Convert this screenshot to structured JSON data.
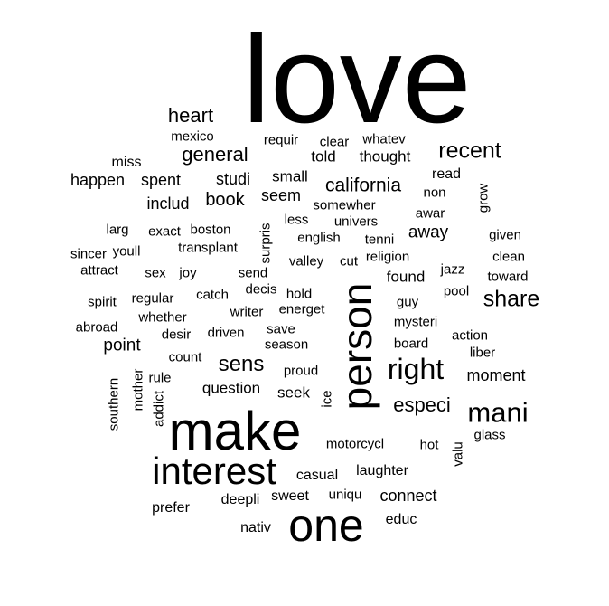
{
  "words": [
    {
      "text": "love",
      "size": 138,
      "rotate": 0
    },
    {
      "text": "make",
      "size": 60,
      "rotate": 0
    },
    {
      "text": "person",
      "size": 46,
      "rotate": -90
    },
    {
      "text": "interest",
      "size": 42,
      "rotate": 0
    },
    {
      "text": "one",
      "size": 50,
      "rotate": 0
    },
    {
      "text": "right",
      "size": 32,
      "rotate": 0
    },
    {
      "text": "mani",
      "size": 31,
      "rotate": 0
    },
    {
      "text": "share",
      "size": 25,
      "rotate": 0
    },
    {
      "text": "recent",
      "size": 25,
      "rotate": 0
    },
    {
      "text": "sens",
      "size": 24,
      "rotate": 0
    },
    {
      "text": "heart",
      "size": 22,
      "rotate": 0
    },
    {
      "text": "general",
      "size": 22,
      "rotate": 0
    },
    {
      "text": "california",
      "size": 21,
      "rotate": 0
    },
    {
      "text": "especi",
      "size": 22,
      "rotate": 0
    },
    {
      "text": "book",
      "size": 20,
      "rotate": 0
    },
    {
      "text": "point",
      "size": 19,
      "rotate": 0
    },
    {
      "text": "away",
      "size": 19,
      "rotate": 0
    },
    {
      "text": "studi",
      "size": 18,
      "rotate": 0
    },
    {
      "text": "includ",
      "size": 18,
      "rotate": 0
    },
    {
      "text": "happen",
      "size": 18,
      "rotate": 0
    },
    {
      "text": "spent",
      "size": 18,
      "rotate": 0
    },
    {
      "text": "connect",
      "size": 18,
      "rotate": 0
    },
    {
      "text": "moment",
      "size": 18,
      "rotate": 0
    },
    {
      "text": "seem",
      "size": 18,
      "rotate": 0
    },
    {
      "text": "found",
      "size": 17,
      "rotate": 0
    },
    {
      "text": "small",
      "size": 17,
      "rotate": 0
    },
    {
      "text": "thought",
      "size": 17,
      "rotate": 0
    },
    {
      "text": "told",
      "size": 17,
      "rotate": 0
    },
    {
      "text": "question",
      "size": 17,
      "rotate": 0
    },
    {
      "text": "seek",
      "size": 17,
      "rotate": 0
    },
    {
      "text": "motorcycl",
      "size": 15,
      "rotate": 0
    },
    {
      "text": "mysteri",
      "size": 15,
      "rotate": 0
    },
    {
      "text": "miss",
      "size": 16,
      "rotate": 0
    },
    {
      "text": "read",
      "size": 16,
      "rotate": 0
    },
    {
      "text": "prefer",
      "size": 16,
      "rotate": 0
    },
    {
      "text": "deepli",
      "size": 16,
      "rotate": 0
    },
    {
      "text": "sweet",
      "size": 16,
      "rotate": 0
    },
    {
      "text": "nativ",
      "size": 16,
      "rotate": 0
    },
    {
      "text": "educ",
      "size": 16,
      "rotate": 0
    },
    {
      "text": "casual",
      "size": 16,
      "rotate": 0
    },
    {
      "text": "laughter",
      "size": 16,
      "rotate": 0
    },
    {
      "text": "uniqu",
      "size": 15,
      "rotate": 0
    },
    {
      "text": "hot",
      "size": 15,
      "rotate": 0
    },
    {
      "text": "glass",
      "size": 15,
      "rotate": 0
    },
    {
      "text": "valu",
      "size": 15,
      "rotate": -90
    },
    {
      "text": "proud",
      "size": 15,
      "rotate": 0
    },
    {
      "text": "save",
      "size": 15,
      "rotate": 0
    },
    {
      "text": "season",
      "size": 15,
      "rotate": 0
    },
    {
      "text": "count",
      "size": 15,
      "rotate": 0
    },
    {
      "text": "rule",
      "size": 15,
      "rotate": 0
    },
    {
      "text": "whether",
      "size": 15,
      "rotate": 0
    },
    {
      "text": "regular",
      "size": 15,
      "rotate": 0
    },
    {
      "text": "spirit",
      "size": 15,
      "rotate": 0
    },
    {
      "text": "abroad",
      "size": 15,
      "rotate": 0
    },
    {
      "text": "desir",
      "size": 15,
      "rotate": 0
    },
    {
      "text": "driven",
      "size": 15,
      "rotate": 0
    },
    {
      "text": "writer",
      "size": 15,
      "rotate": 0
    },
    {
      "text": "energet",
      "size": 15,
      "rotate": 0
    },
    {
      "text": "hold",
      "size": 15,
      "rotate": 0
    },
    {
      "text": "decis",
      "size": 15,
      "rotate": 0
    },
    {
      "text": "catch",
      "size": 15,
      "rotate": 0
    },
    {
      "text": "send",
      "size": 15,
      "rotate": 0
    },
    {
      "text": "joy",
      "size": 15,
      "rotate": 0
    },
    {
      "text": "sex",
      "size": 15,
      "rotate": 0
    },
    {
      "text": "attract",
      "size": 15,
      "rotate": 0
    },
    {
      "text": "sincer",
      "size": 15,
      "rotate": 0
    },
    {
      "text": "youll",
      "size": 15,
      "rotate": 0
    },
    {
      "text": "transplant",
      "size": 15,
      "rotate": 0
    },
    {
      "text": "larg",
      "size": 15,
      "rotate": 0
    },
    {
      "text": "exact",
      "size": 15,
      "rotate": 0
    },
    {
      "text": "boston",
      "size": 15,
      "rotate": 0
    },
    {
      "text": "less",
      "size": 15,
      "rotate": 0
    },
    {
      "text": "univers",
      "size": 15,
      "rotate": 0
    },
    {
      "text": "english",
      "size": 15,
      "rotate": 0
    },
    {
      "text": "tenni",
      "size": 15,
      "rotate": 0
    },
    {
      "text": "valley",
      "size": 15,
      "rotate": 0
    },
    {
      "text": "cut",
      "size": 15,
      "rotate": 0
    },
    {
      "text": "religion",
      "size": 15,
      "rotate": 0
    },
    {
      "text": "somewher",
      "size": 15,
      "rotate": 0
    },
    {
      "text": "non",
      "size": 15,
      "rotate": 0
    },
    {
      "text": "awar",
      "size": 15,
      "rotate": 0
    },
    {
      "text": "given",
      "size": 15,
      "rotate": 0
    },
    {
      "text": "clean",
      "size": 15,
      "rotate": 0
    },
    {
      "text": "toward",
      "size": 15,
      "rotate": 0
    },
    {
      "text": "jazz",
      "size": 15,
      "rotate": 0
    },
    {
      "text": "pool",
      "size": 15,
      "rotate": 0
    },
    {
      "text": "guy",
      "size": 15,
      "rotate": 0
    },
    {
      "text": "board",
      "size": 15,
      "rotate": 0
    },
    {
      "text": "action",
      "size": 15,
      "rotate": 0
    },
    {
      "text": "liber",
      "size": 15,
      "rotate": 0
    },
    {
      "text": "mexico",
      "size": 15,
      "rotate": 0
    },
    {
      "text": "requir",
      "size": 15,
      "rotate": 0
    },
    {
      "text": "clear",
      "size": 15,
      "rotate": 0
    },
    {
      "text": "whatev",
      "size": 15,
      "rotate": 0
    },
    {
      "text": "grow",
      "size": 15,
      "rotate": -90
    },
    {
      "text": "surpris",
      "size": 15,
      "rotate": -90
    },
    {
      "text": "southern",
      "size": 15,
      "rotate": -90
    },
    {
      "text": "mother",
      "size": 15,
      "rotate": -90
    },
    {
      "text": "addict",
      "size": 15,
      "rotate": -90
    },
    {
      "text": "ice",
      "size": 15,
      "rotate": -90
    }
  ]
}
